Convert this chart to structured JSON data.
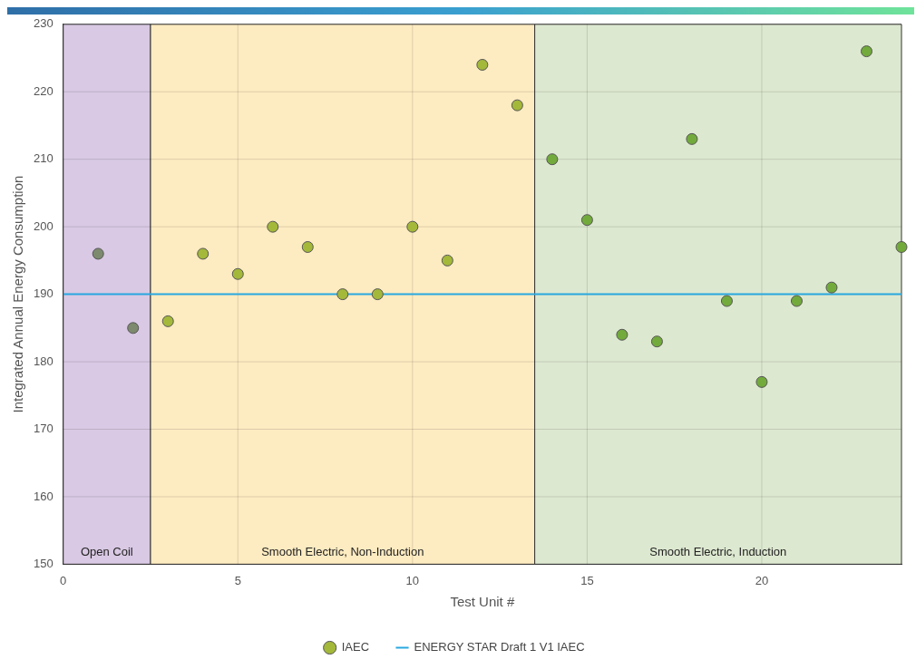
{
  "chart_data": {
    "type": "scatter",
    "xlabel": "Test Unit #",
    "ylabel": "Integrated Annual Energy Consumption",
    "x": [
      1,
      2,
      3,
      4,
      5,
      6,
      7,
      8,
      9,
      10,
      11,
      12,
      13,
      14,
      15,
      16,
      17,
      18,
      19,
      20,
      21,
      22,
      23,
      24
    ],
    "series": [
      {
        "name": "IAEC",
        "color": "#a4b83a",
        "colors": [
          "#7d8a6e",
          "#7d8a6e",
          "#a4b83a",
          "#a4b83a",
          "#a4b83a",
          "#a4b83a",
          "#a4b83a",
          "#a4b83a",
          "#a4b83a",
          "#a4b83a",
          "#a4b83a",
          "#a4b83a",
          "#a4b83a",
          "#72aa3c",
          "#72aa3c",
          "#72aa3c",
          "#72aa3c",
          "#72aa3c",
          "#72aa3c",
          "#72aa3c",
          "#72aa3c",
          "#72aa3c",
          "#72aa3c",
          "#72aa3c"
        ],
        "values": [
          196,
          185,
          186,
          196,
          193,
          200,
          197,
          190,
          190,
          200,
          195,
          224,
          218,
          210,
          201,
          184,
          183,
          213,
          189,
          177,
          189,
          191,
          226,
          197
        ]
      }
    ],
    "xlim": [
      0,
      24
    ],
    "xticks": [
      0,
      5,
      10,
      15,
      20
    ],
    "ylim": [
      150,
      230
    ],
    "yticks": [
      150,
      160,
      170,
      180,
      190,
      200,
      210,
      220,
      230
    ],
    "grid": true,
    "legend": "bottom",
    "marker": "circle",
    "ref_lines": [
      {
        "axis": "y",
        "value": 190,
        "label": "ENERGY STAR Draft 1 V1 IAEC",
        "color": "#29a8e0"
      }
    ],
    "bands": [
      {
        "axis": "x",
        "from": 0,
        "to": 2.5,
        "label": "Open Coil",
        "color": "#d9c9e4"
      },
      {
        "axis": "x",
        "from": 2.5,
        "to": 13.5,
        "label": "Smooth Electric, Non-Induction",
        "color": "#fdebc1"
      },
      {
        "axis": "x",
        "from": 13.5,
        "to": 24,
        "label": "Smooth Electric, Induction",
        "color": "#dde8d0"
      }
    ]
  }
}
